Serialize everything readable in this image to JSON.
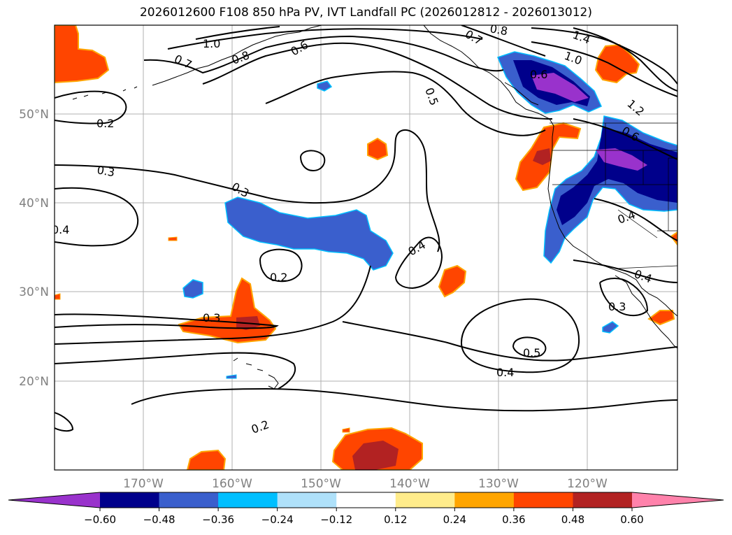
{
  "title": "2026012600 F108 850 hPa PV, IVT Landfall PC (2026012812 - 2026013012)",
  "map": {
    "lat_labels": [
      "50°N",
      "40°N",
      "30°N",
      "20°N"
    ],
    "lon_labels": [
      "170°W",
      "160°W",
      "150°W",
      "140°W",
      "130°W",
      "120°W"
    ],
    "contour_labels": [
      "1.0",
      "0.7",
      "0.8",
      "0.6",
      "0.5",
      "0.7",
      "0.8",
      "1.4",
      "1.0",
      "0.6",
      "1.2",
      "0.6",
      "0.2",
      "0.3",
      "0.3",
      "0.4",
      "0.4",
      "0.2",
      "0.4",
      "0.3",
      "0.4",
      "0.3",
      "0.5",
      "0.4",
      "0.2"
    ],
    "colors": {
      "purple": "#9932cc",
      "navy": "#00008b",
      "royal": "#3a5fcd",
      "cyan": "#00bfff",
      "lightblue": "#afe1fa",
      "yellow": "#ffec8b",
      "orange": "#ffa500",
      "red_orange": "#ff4500",
      "dark_red": "#b22222",
      "pink": "#ff82ab"
    }
  },
  "colorbar": {
    "ticks": [
      "−0.60",
      "−0.48",
      "−0.36",
      "−0.24",
      "−0.12",
      "0.12",
      "0.24",
      "0.36",
      "0.48",
      "0.60"
    ],
    "colors": [
      "#9932cc",
      "#00008b",
      "#3a5fcd",
      "#00bfff",
      "#afe1fa",
      "#ffffff",
      "#ffec8b",
      "#ffa500",
      "#ff4500",
      "#b22222",
      "#ff82ab"
    ]
  }
}
